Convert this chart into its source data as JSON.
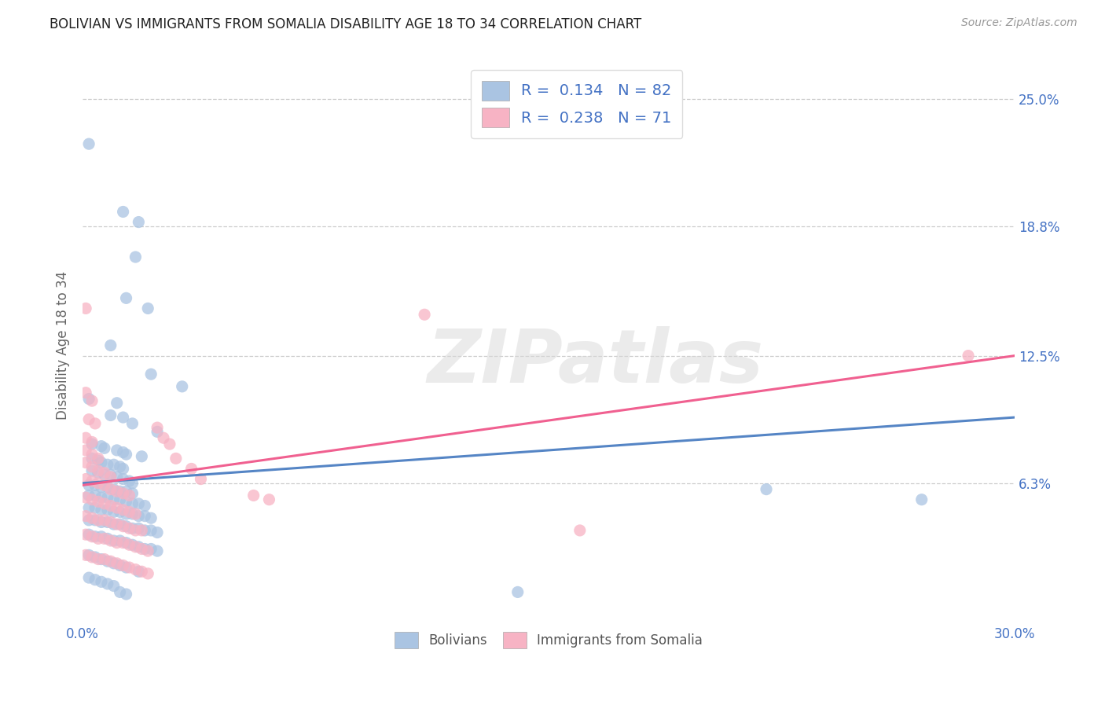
{
  "title": "BOLIVIAN VS IMMIGRANTS FROM SOMALIA DISABILITY AGE 18 TO 34 CORRELATION CHART",
  "source": "Source: ZipAtlas.com",
  "ylabel": "Disability Age 18 to 34",
  "xlim": [
    0.0,
    0.3
  ],
  "ylim": [
    -0.005,
    0.265
  ],
  "ytick_labels_right": [
    "25.0%",
    "18.8%",
    "12.5%",
    "6.3%"
  ],
  "ytick_values_right": [
    0.25,
    0.188,
    0.125,
    0.063
  ],
  "xtick_values": [
    0.0,
    0.3
  ],
  "xtick_labels": [
    "0.0%",
    "30.0%"
  ],
  "legend_label1": "Bolivians",
  "legend_label2": "Immigrants from Somalia",
  "scatter_blue": [
    [
      0.002,
      0.228
    ],
    [
      0.013,
      0.195
    ],
    [
      0.018,
      0.19
    ],
    [
      0.017,
      0.173
    ],
    [
      0.014,
      0.153
    ],
    [
      0.021,
      0.148
    ],
    [
      0.009,
      0.13
    ],
    [
      0.022,
      0.116
    ],
    [
      0.032,
      0.11
    ],
    [
      0.002,
      0.104
    ],
    [
      0.011,
      0.102
    ],
    [
      0.009,
      0.096
    ],
    [
      0.013,
      0.095
    ],
    [
      0.016,
      0.092
    ],
    [
      0.024,
      0.088
    ],
    [
      0.003,
      0.082
    ],
    [
      0.006,
      0.081
    ],
    [
      0.007,
      0.08
    ],
    [
      0.011,
      0.079
    ],
    [
      0.013,
      0.078
    ],
    [
      0.014,
      0.077
    ],
    [
      0.019,
      0.076
    ],
    [
      0.003,
      0.075
    ],
    [
      0.005,
      0.074
    ],
    [
      0.006,
      0.073
    ],
    [
      0.008,
      0.072
    ],
    [
      0.01,
      0.072
    ],
    [
      0.012,
      0.071
    ],
    [
      0.013,
      0.07
    ],
    [
      0.003,
      0.069
    ],
    [
      0.005,
      0.068
    ],
    [
      0.007,
      0.067
    ],
    [
      0.009,
      0.067
    ],
    [
      0.011,
      0.066
    ],
    [
      0.013,
      0.065
    ],
    [
      0.015,
      0.064
    ],
    [
      0.016,
      0.063
    ],
    [
      0.002,
      0.062
    ],
    [
      0.004,
      0.062
    ],
    [
      0.006,
      0.061
    ],
    [
      0.008,
      0.061
    ],
    [
      0.01,
      0.06
    ],
    [
      0.012,
      0.059
    ],
    [
      0.014,
      0.059
    ],
    [
      0.016,
      0.058
    ],
    [
      0.002,
      0.057
    ],
    [
      0.004,
      0.057
    ],
    [
      0.006,
      0.056
    ],
    [
      0.008,
      0.056
    ],
    [
      0.01,
      0.055
    ],
    [
      0.012,
      0.055
    ],
    [
      0.014,
      0.054
    ],
    [
      0.016,
      0.053
    ],
    [
      0.018,
      0.053
    ],
    [
      0.02,
      0.052
    ],
    [
      0.002,
      0.051
    ],
    [
      0.004,
      0.051
    ],
    [
      0.006,
      0.05
    ],
    [
      0.008,
      0.05
    ],
    [
      0.01,
      0.049
    ],
    [
      0.012,
      0.049
    ],
    [
      0.014,
      0.048
    ],
    [
      0.016,
      0.048
    ],
    [
      0.018,
      0.047
    ],
    [
      0.02,
      0.047
    ],
    [
      0.022,
      0.046
    ],
    [
      0.002,
      0.045
    ],
    [
      0.004,
      0.045
    ],
    [
      0.006,
      0.044
    ],
    [
      0.008,
      0.044
    ],
    [
      0.01,
      0.043
    ],
    [
      0.012,
      0.043
    ],
    [
      0.014,
      0.042
    ],
    [
      0.016,
      0.041
    ],
    [
      0.018,
      0.041
    ],
    [
      0.02,
      0.04
    ],
    [
      0.022,
      0.04
    ],
    [
      0.024,
      0.039
    ],
    [
      0.002,
      0.038
    ],
    [
      0.004,
      0.037
    ],
    [
      0.006,
      0.037
    ],
    [
      0.008,
      0.036
    ],
    [
      0.01,
      0.035
    ],
    [
      0.012,
      0.035
    ],
    [
      0.014,
      0.034
    ],
    [
      0.016,
      0.033
    ],
    [
      0.018,
      0.032
    ],
    [
      0.02,
      0.031
    ],
    [
      0.022,
      0.031
    ],
    [
      0.024,
      0.03
    ],
    [
      0.002,
      0.028
    ],
    [
      0.004,
      0.027
    ],
    [
      0.006,
      0.026
    ],
    [
      0.008,
      0.025
    ],
    [
      0.01,
      0.024
    ],
    [
      0.012,
      0.023
    ],
    [
      0.014,
      0.022
    ],
    [
      0.018,
      0.02
    ],
    [
      0.002,
      0.017
    ],
    [
      0.004,
      0.016
    ],
    [
      0.006,
      0.015
    ],
    [
      0.008,
      0.014
    ],
    [
      0.01,
      0.013
    ],
    [
      0.012,
      0.01
    ],
    [
      0.014,
      0.009
    ],
    [
      0.14,
      0.01
    ],
    [
      0.22,
      0.06
    ],
    [
      0.27,
      0.055
    ]
  ],
  "scatter_pink": [
    [
      0.001,
      0.148
    ],
    [
      0.001,
      0.107
    ],
    [
      0.003,
      0.103
    ],
    [
      0.002,
      0.094
    ],
    [
      0.004,
      0.092
    ],
    [
      0.001,
      0.085
    ],
    [
      0.003,
      0.083
    ],
    [
      0.001,
      0.079
    ],
    [
      0.003,
      0.077
    ],
    [
      0.005,
      0.075
    ],
    [
      0.001,
      0.073
    ],
    [
      0.003,
      0.071
    ],
    [
      0.005,
      0.069
    ],
    [
      0.007,
      0.068
    ],
    [
      0.009,
      0.066
    ],
    [
      0.001,
      0.065
    ],
    [
      0.003,
      0.064
    ],
    [
      0.005,
      0.063
    ],
    [
      0.007,
      0.062
    ],
    [
      0.009,
      0.06
    ],
    [
      0.011,
      0.059
    ],
    [
      0.013,
      0.058
    ],
    [
      0.015,
      0.057
    ],
    [
      0.001,
      0.056
    ],
    [
      0.003,
      0.055
    ],
    [
      0.005,
      0.054
    ],
    [
      0.007,
      0.053
    ],
    [
      0.009,
      0.052
    ],
    [
      0.011,
      0.051
    ],
    [
      0.013,
      0.05
    ],
    [
      0.015,
      0.049
    ],
    [
      0.017,
      0.048
    ],
    [
      0.001,
      0.047
    ],
    [
      0.003,
      0.046
    ],
    [
      0.005,
      0.045
    ],
    [
      0.007,
      0.045
    ],
    [
      0.009,
      0.044
    ],
    [
      0.011,
      0.043
    ],
    [
      0.013,
      0.042
    ],
    [
      0.015,
      0.041
    ],
    [
      0.017,
      0.04
    ],
    [
      0.019,
      0.04
    ],
    [
      0.001,
      0.038
    ],
    [
      0.003,
      0.037
    ],
    [
      0.005,
      0.036
    ],
    [
      0.007,
      0.036
    ],
    [
      0.009,
      0.035
    ],
    [
      0.011,
      0.034
    ],
    [
      0.013,
      0.034
    ],
    [
      0.015,
      0.033
    ],
    [
      0.017,
      0.032
    ],
    [
      0.019,
      0.031
    ],
    [
      0.021,
      0.03
    ],
    [
      0.001,
      0.028
    ],
    [
      0.003,
      0.027
    ],
    [
      0.005,
      0.026
    ],
    [
      0.007,
      0.026
    ],
    [
      0.009,
      0.025
    ],
    [
      0.011,
      0.024
    ],
    [
      0.013,
      0.023
    ],
    [
      0.015,
      0.022
    ],
    [
      0.017,
      0.021
    ],
    [
      0.019,
      0.02
    ],
    [
      0.021,
      0.019
    ],
    [
      0.024,
      0.09
    ],
    [
      0.026,
      0.085
    ],
    [
      0.028,
      0.082
    ],
    [
      0.03,
      0.075
    ],
    [
      0.035,
      0.07
    ],
    [
      0.038,
      0.065
    ],
    [
      0.055,
      0.057
    ],
    [
      0.06,
      0.055
    ],
    [
      0.11,
      0.145
    ],
    [
      0.16,
      0.04
    ],
    [
      0.285,
      0.125
    ]
  ],
  "blue_line_x": [
    0.0,
    0.3
  ],
  "blue_line_y": [
    0.063,
    0.095
  ],
  "pink_line_x": [
    0.0,
    0.3
  ],
  "pink_line_y": [
    0.062,
    0.125
  ],
  "blue_scatter_color": "#aac4e2",
  "pink_scatter_color": "#f7b3c4",
  "blue_line_color": "#5585c5",
  "pink_line_color": "#f06090",
  "blue_text_color": "#4472c4",
  "tick_color": "#4472c4",
  "ylabel_color": "#666666",
  "watermark": "ZIPatlas",
  "background_color": "#ffffff",
  "grid_color": "#cccccc",
  "title_color": "#222222",
  "source_color": "#999999"
}
